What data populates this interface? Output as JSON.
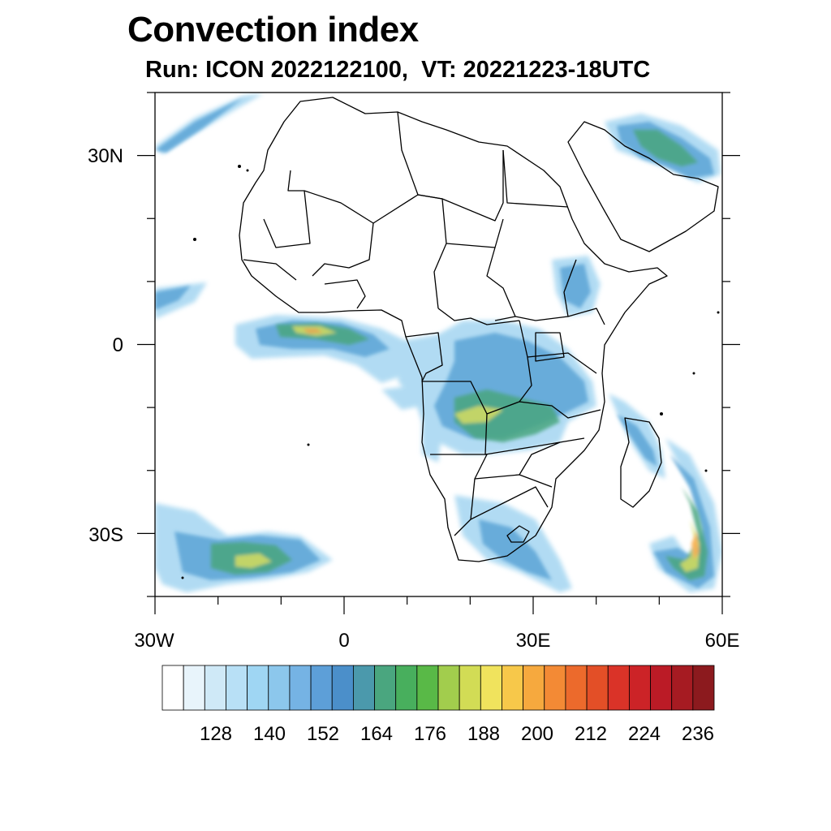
{
  "title": "Convection index",
  "subtitle": "Run: ICON 2022122100,  VT: 20221223-18UTC",
  "map": {
    "region": "Africa",
    "lon_range": [
      -30,
      60
    ],
    "lat_range": [
      -40,
      40
    ],
    "lat_tick_labels": [
      "30N",
      "0",
      "30S"
    ],
    "lon_tick_labels": [
      "30W",
      "0",
      "30E",
      "60E"
    ]
  },
  "colorbar": {
    "tick_labels": [
      "128",
      "140",
      "152",
      "164",
      "176",
      "188",
      "200",
      "212",
      "224",
      "236"
    ],
    "colors": [
      "#ffffff",
      "#e8f4fb",
      "#cfe9f7",
      "#b8e0f6",
      "#9fd6f3",
      "#8cc7ec",
      "#75b3e4",
      "#5d9fd8",
      "#4b8fca",
      "#4b99ac",
      "#4aa67f",
      "#48af5d",
      "#59b947",
      "#a2cd4d",
      "#d2dc55",
      "#f0e35d",
      "#f7c84a",
      "#f6a93e",
      "#f38a35",
      "#ec6a2c",
      "#e34f27",
      "#da3328",
      "#cc2327",
      "#bb1b26",
      "#a61b22",
      "#8c1a1e"
    ]
  }
}
